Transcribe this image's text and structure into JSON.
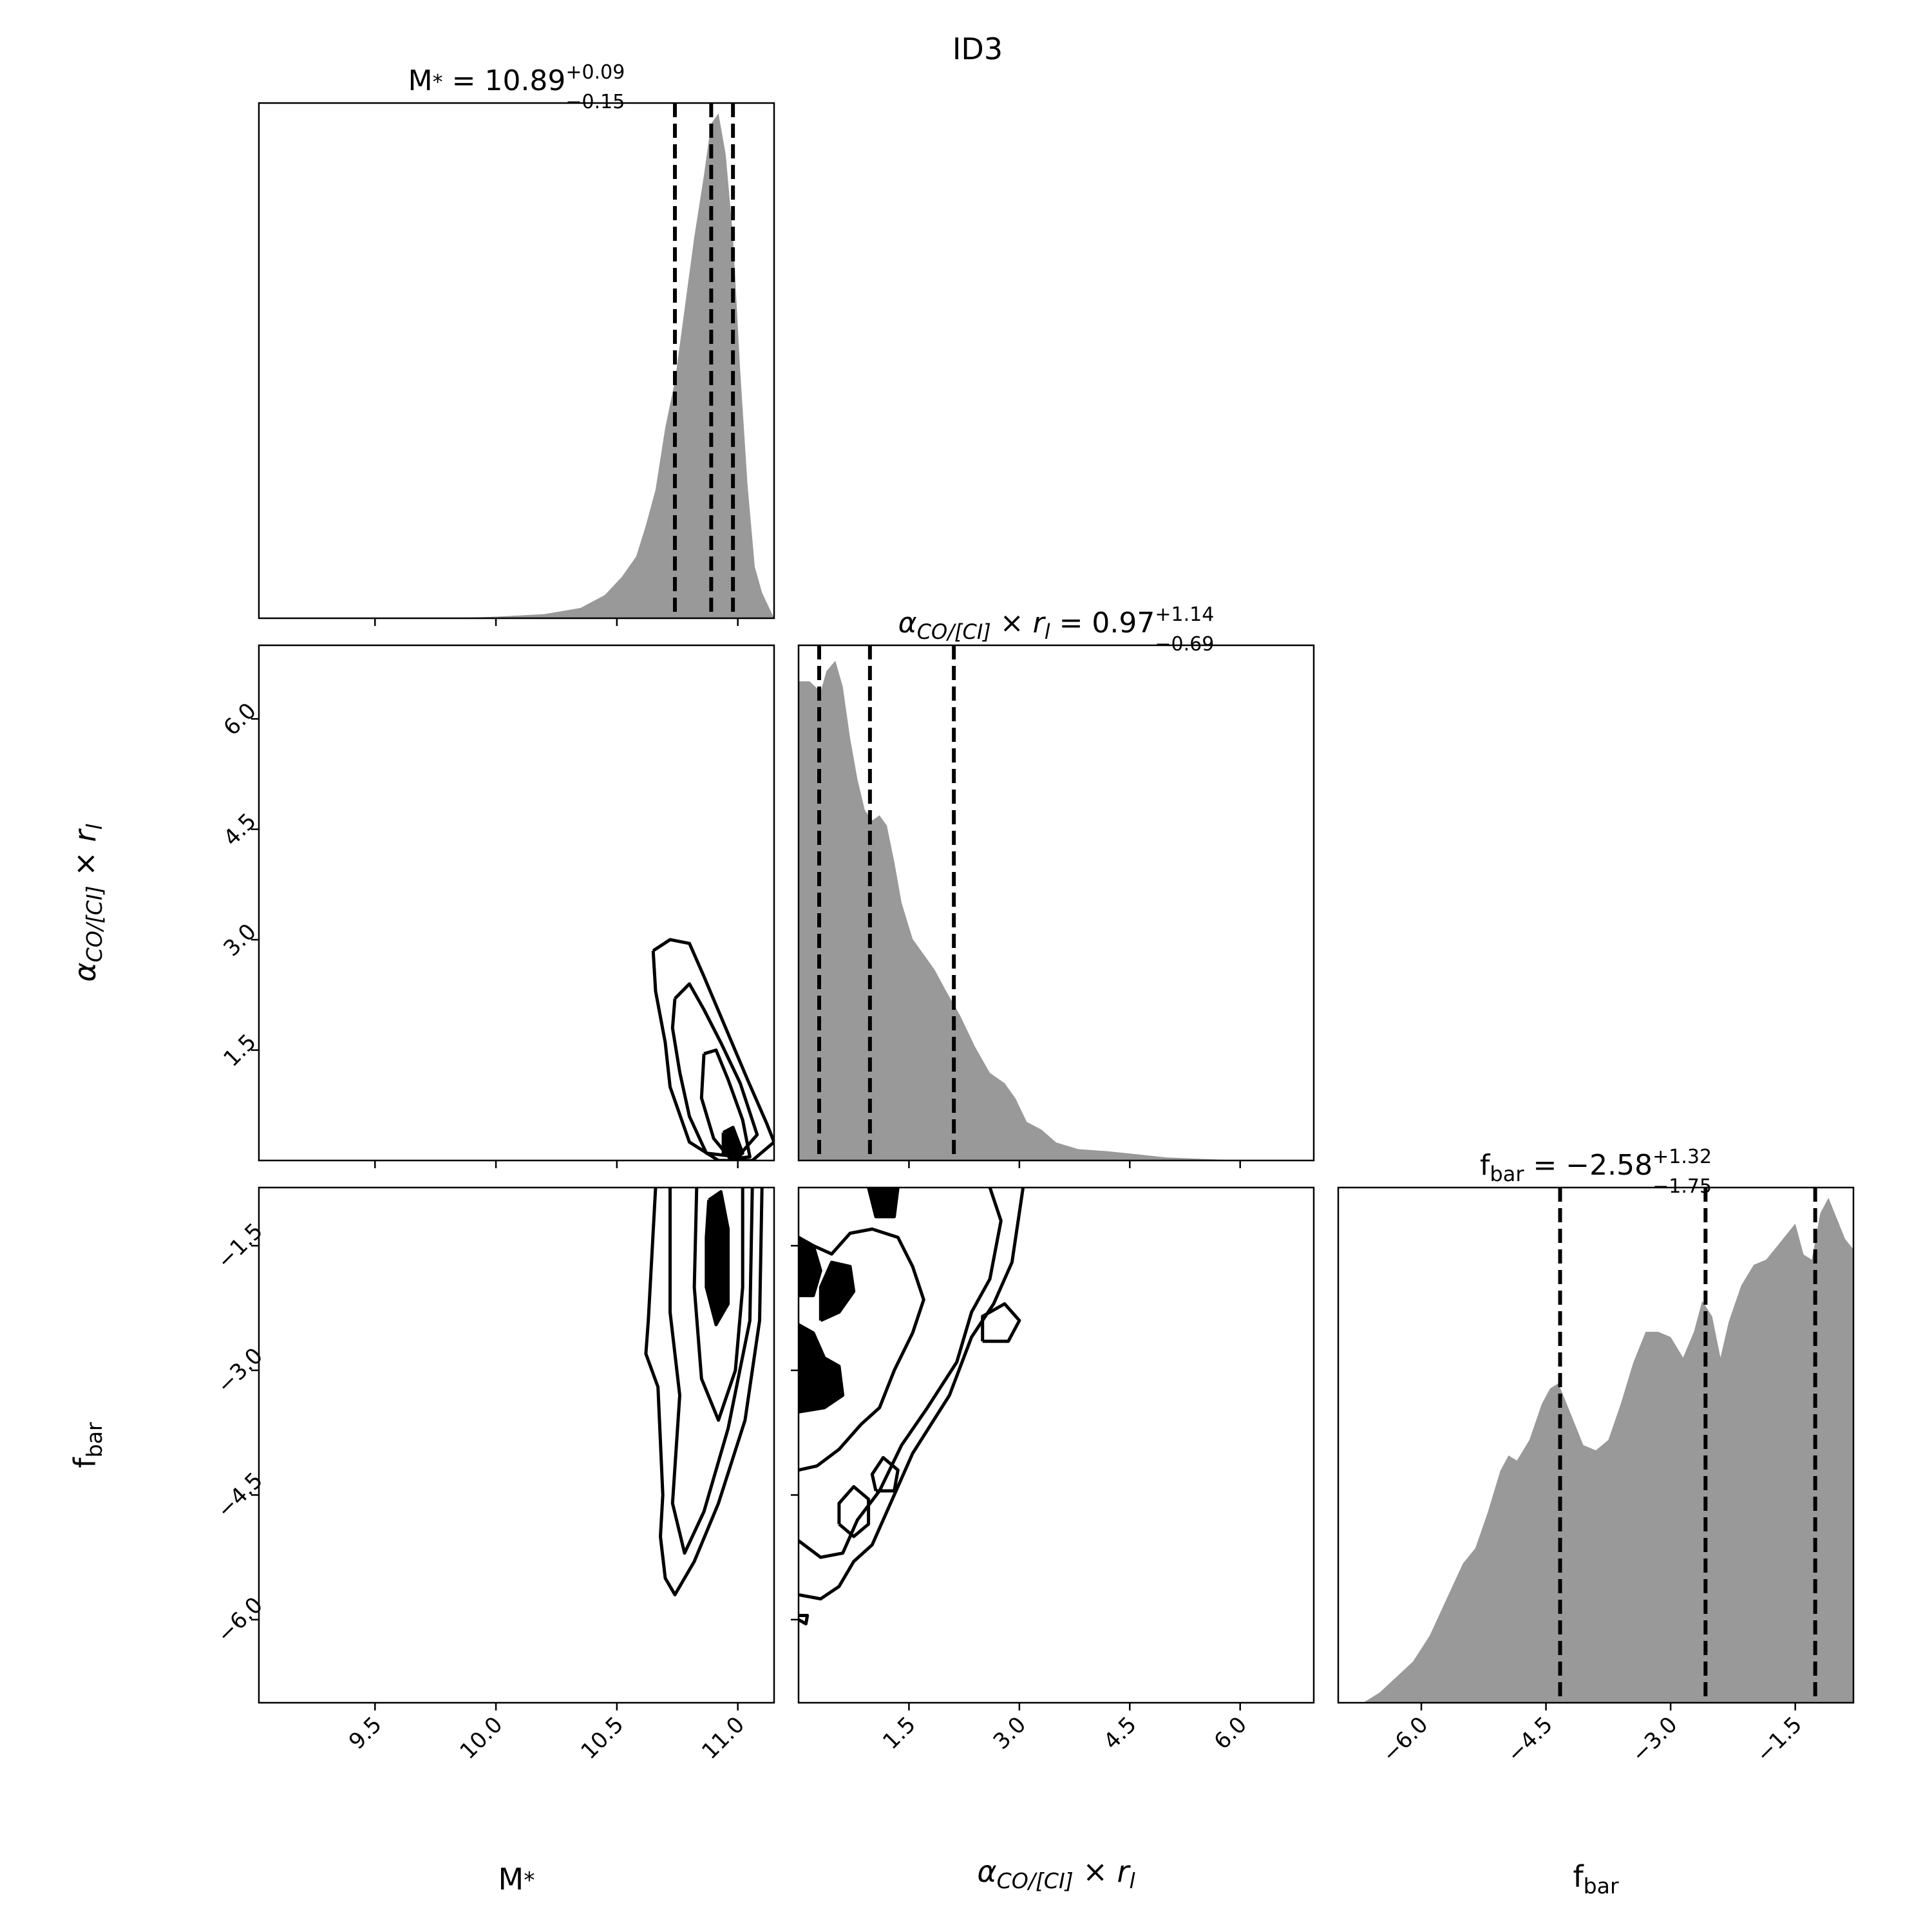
{
  "figure_title": "ID3",
  "chart_data": [
    {
      "type": "area",
      "panel": "hist-mstar",
      "x_param": "M*",
      "title": {
        "symbol": "M*",
        "median": "10.89",
        "plus": "+0.09",
        "minus": "−0.15"
      },
      "xlim": [
        9.02,
        11.15
      ],
      "quantiles": [
        10.74,
        10.89,
        10.98
      ],
      "x": [
        9.02,
        9.5,
        9.8,
        10.0,
        10.2,
        10.35,
        10.45,
        10.52,
        10.58,
        10.62,
        10.66,
        10.7,
        10.74,
        10.78,
        10.82,
        10.86,
        10.89,
        10.92,
        10.95,
        10.98,
        11.01,
        11.04,
        11.07,
        11.1,
        11.12,
        11.15
      ],
      "density": [
        0.0,
        0.0,
        0.0,
        0.003,
        0.008,
        0.02,
        0.045,
        0.08,
        0.12,
        0.18,
        0.25,
        0.37,
        0.46,
        0.6,
        0.74,
        0.86,
        0.96,
        0.98,
        0.9,
        0.74,
        0.48,
        0.26,
        0.1,
        0.05,
        0.03,
        0.0
      ]
    },
    {
      "type": "area",
      "panel": "hist-alpha",
      "x_param": "αCO/[CI] × rl",
      "title": {
        "symbol": "αCO/[CI] × rl",
        "median": "0.97",
        "plus": "+1.14",
        "minus": "−0.69"
      },
      "xlim": [
        0.0,
        7.0
      ],
      "quantiles": [
        0.28,
        0.97,
        2.11
      ],
      "x_ticks": [
        "1.5",
        "3.0",
        "4.5",
        "6.0"
      ],
      "x": [
        0.0,
        0.15,
        0.3,
        0.38,
        0.5,
        0.6,
        0.7,
        0.8,
        0.9,
        1.0,
        1.1,
        1.2,
        1.3,
        1.4,
        1.55,
        1.7,
        1.85,
        2.0,
        2.2,
        2.4,
        2.6,
        2.8,
        2.95,
        3.1,
        3.3,
        3.5,
        3.8,
        4.2,
        5.0,
        6.0,
        7.0
      ],
      "density": [
        0.93,
        0.93,
        0.91,
        0.95,
        0.97,
        0.92,
        0.82,
        0.74,
        0.68,
        0.66,
        0.67,
        0.65,
        0.58,
        0.5,
        0.43,
        0.4,
        0.37,
        0.33,
        0.28,
        0.22,
        0.17,
        0.15,
        0.12,
        0.075,
        0.06,
        0.035,
        0.022,
        0.018,
        0.006,
        0.0,
        0.0
      ]
    },
    {
      "type": "area",
      "panel": "hist-fbar",
      "x_param": "fbar",
      "title": {
        "symbol": "fbar",
        "median": "−2.58",
        "plus": "+1.32",
        "minus": "−1.75"
      },
      "xlim": [
        -7.0,
        -0.8
      ],
      "quantiles": [
        -4.33,
        -2.58,
        -1.26
      ],
      "x_ticks": [
        "−6.0",
        "−4.5",
        "−3.0",
        "−1.5"
      ],
      "x": [
        -7.0,
        -6.7,
        -6.5,
        -6.3,
        -6.1,
        -5.9,
        -5.7,
        -5.5,
        -5.35,
        -5.2,
        -5.05,
        -4.95,
        -4.85,
        -4.7,
        -4.55,
        -4.45,
        -4.35,
        -4.2,
        -4.05,
        -3.9,
        -3.75,
        -3.6,
        -3.45,
        -3.3,
        -3.15,
        -3.0,
        -2.85,
        -2.72,
        -2.62,
        -2.5,
        -2.4,
        -2.3,
        -2.15,
        -2.0,
        -1.85,
        -1.7,
        -1.6,
        -1.5,
        -1.4,
        -1.3,
        -1.2,
        -1.1,
        -1.0,
        -0.9,
        -0.8
      ],
      "density": [
        0.0,
        0.0,
        0.02,
        0.05,
        0.08,
        0.13,
        0.2,
        0.27,
        0.3,
        0.37,
        0.45,
        0.48,
        0.47,
        0.51,
        0.58,
        0.61,
        0.62,
        0.56,
        0.5,
        0.49,
        0.51,
        0.58,
        0.66,
        0.72,
        0.72,
        0.71,
        0.67,
        0.72,
        0.78,
        0.75,
        0.67,
        0.74,
        0.81,
        0.85,
        0.86,
        0.89,
        0.91,
        0.93,
        0.87,
        0.86,
        0.95,
        0.98,
        0.94,
        0.9,
        0.88
      ]
    },
    {
      "type": "contour",
      "panel": "2d-mstar-alpha",
      "x_param": "M*",
      "y_param": "αCO/[CI] × rl",
      "xlim": [
        9.02,
        11.15
      ],
      "ylim": [
        0.0,
        7.0
      ],
      "x_ticks": [
        "9.5",
        "10.0",
        "10.5",
        "11.0"
      ],
      "y_ticks": [
        "1.5",
        "3.0",
        "4.5",
        "6.0"
      ],
      "levels": [
        {
          "points": [
            [
              10.65,
              2.85
            ],
            [
              10.72,
              3.0
            ],
            [
              10.8,
              2.95
            ],
            [
              10.86,
              2.5
            ],
            [
              10.95,
              1.8
            ],
            [
              11.04,
              1.1
            ],
            [
              11.12,
              0.5
            ],
            [
              11.15,
              0.25
            ],
            [
              11.06,
              0.0
            ],
            [
              10.92,
              0.0
            ],
            [
              10.8,
              0.25
            ],
            [
              10.72,
              1.0
            ],
            [
              10.7,
              1.6
            ],
            [
              10.66,
              2.3
            ],
            [
              10.65,
              2.85
            ]
          ],
          "filled": false
        },
        {
          "points": [
            [
              10.74,
              2.2
            ],
            [
              10.8,
              2.4
            ],
            [
              10.86,
              2.05
            ],
            [
              10.93,
              1.6
            ],
            [
              11.01,
              1.05
            ],
            [
              11.08,
              0.35
            ],
            [
              11.0,
              0.05
            ],
            [
              10.87,
              0.1
            ],
            [
              10.8,
              0.6
            ],
            [
              10.76,
              1.2
            ],
            [
              10.73,
              1.8
            ],
            [
              10.74,
              2.2
            ]
          ],
          "filled": false
        },
        {
          "points": [
            [
              10.86,
              1.45
            ],
            [
              10.91,
              1.5
            ],
            [
              10.96,
              1.1
            ],
            [
              11.02,
              0.55
            ],
            [
              11.05,
              0.05
            ],
            [
              10.97,
              0.02
            ],
            [
              10.9,
              0.3
            ],
            [
              10.85,
              0.85
            ],
            [
              10.86,
              1.45
            ]
          ],
          "filled": false
        },
        {
          "points": [
            [
              10.94,
              0.38
            ],
            [
              10.98,
              0.45
            ],
            [
              11.02,
              0.1
            ],
            [
              10.99,
              0.02
            ],
            [
              10.94,
              0.1
            ],
            [
              10.94,
              0.38
            ]
          ],
          "filled": true
        }
      ]
    },
    {
      "type": "contour",
      "panel": "2d-mstar-fbar",
      "x_param": "M*",
      "y_param": "fbar",
      "xlim": [
        9.02,
        11.15
      ],
      "ylim": [
        -7.0,
        -0.8
      ],
      "x_ticks": [
        "9.5",
        "10.0",
        "10.5",
        "11.0"
      ],
      "y_ticks": [
        "−1.5",
        "−3.0",
        "−4.5",
        "−6.0"
      ],
      "levels": [
        {
          "points": [
            [
              10.66,
              -0.8
            ],
            [
              10.63,
              -2.4
            ],
            [
              10.62,
              -2.8
            ],
            [
              10.67,
              -3.2
            ],
            [
              10.69,
              -4.5
            ],
            [
              10.68,
              -5.0
            ],
            [
              10.7,
              -5.5
            ],
            [
              10.74,
              -5.7
            ],
            [
              10.82,
              -5.3
            ],
            [
              10.92,
              -4.6
            ],
            [
              11.03,
              -3.6
            ],
            [
              11.09,
              -2.4
            ],
            [
              11.1,
              -0.8
            ]
          ],
          "filled": false
        },
        {
          "points": [
            [
              10.72,
              -0.8
            ],
            [
              10.72,
              -2.3
            ],
            [
              10.76,
              -3.3
            ],
            [
              10.73,
              -4.6
            ],
            [
              10.78,
              -5.2
            ],
            [
              10.86,
              -4.7
            ],
            [
              10.96,
              -3.7
            ],
            [
              11.05,
              -2.4
            ],
            [
              11.06,
              -0.8
            ]
          ],
          "filled": false
        },
        {
          "points": [
            [
              10.83,
              -0.8
            ],
            [
              10.82,
              -2.0
            ],
            [
              10.85,
              -3.1
            ],
            [
              10.92,
              -3.6
            ],
            [
              10.99,
              -3.0
            ],
            [
              11.02,
              -2.0
            ],
            [
              11.02,
              -0.8
            ]
          ],
          "filled": false
        },
        {
          "points": [
            [
              10.88,
              -0.95
            ],
            [
              10.93,
              -0.85
            ],
            [
              10.96,
              -1.3
            ],
            [
              10.96,
              -2.2
            ],
            [
              10.91,
              -2.45
            ],
            [
              10.87,
              -2.0
            ],
            [
              10.87,
              -1.4
            ],
            [
              10.88,
              -0.95
            ]
          ],
          "filled": true
        }
      ]
    },
    {
      "type": "contour",
      "panel": "2d-alpha-fbar",
      "x_param": "αCO/[CI] × rl",
      "y_param": "fbar",
      "xlim": [
        0.0,
        7.0
      ],
      "ylim": [
        -7.0,
        -0.8
      ],
      "x_ticks": [
        "1.5",
        "3.0",
        "4.5",
        "6.0"
      ],
      "y_ticks": [
        "−1.5",
        "−3.0",
        "−4.5",
        "−6.0"
      ],
      "levels": [
        {
          "points": [
            [
              0.0,
              -5.7
            ],
            [
              0.3,
              -5.75
            ],
            [
              0.55,
              -5.6
            ],
            [
              0.75,
              -5.3
            ],
            [
              1.0,
              -5.1
            ],
            [
              1.2,
              -4.7
            ],
            [
              1.55,
              -4.0
            ],
            [
              2.05,
              -3.3
            ],
            [
              2.35,
              -2.6
            ],
            [
              2.65,
              -2.2
            ],
            [
              2.9,
              -1.7
            ],
            [
              3.0,
              -1.1
            ],
            [
              3.05,
              -0.8
            ]
          ],
          "filled": false
        },
        {
          "points": [
            [
              0.0,
              -5.05
            ],
            [
              0.3,
              -5.25
            ],
            [
              0.6,
              -5.2
            ],
            [
              0.8,
              -4.8
            ],
            [
              1.1,
              -4.45
            ],
            [
              1.4,
              -3.9
            ],
            [
              1.75,
              -3.45
            ],
            [
              2.15,
              -2.9
            ],
            [
              2.35,
              -2.3
            ],
            [
              2.6,
              -1.9
            ],
            [
              2.75,
              -1.2
            ],
            [
              2.6,
              -0.8
            ]
          ],
          "filled": false
        },
        {
          "points": [
            [
              0.0,
              -4.2
            ],
            [
              0.25,
              -4.15
            ],
            [
              0.55,
              -3.95
            ],
            [
              0.85,
              -3.65
            ],
            [
              1.1,
              -3.45
            ],
            [
              1.3,
              -3.0
            ],
            [
              1.55,
              -2.55
            ],
            [
              1.7,
              -2.15
            ],
            [
              1.55,
              -1.75
            ],
            [
              1.35,
              -1.4
            ],
            [
              1.0,
              -1.3
            ],
            [
              0.7,
              -1.35
            ],
            [
              0.45,
              -1.6
            ],
            [
              0.2,
              -1.5
            ],
            [
              0.0,
              -1.4
            ]
          ],
          "filled": false
        },
        {
          "points": [
            [
              0.0,
              -3.5
            ],
            [
              0.35,
              -3.45
            ],
            [
              0.6,
              -3.3
            ],
            [
              0.55,
              -2.95
            ],
            [
              0.35,
              -2.85
            ],
            [
              0.2,
              -2.55
            ],
            [
              0.0,
              -2.45
            ]
          ],
          "filled": true
        },
        {
          "points": [
            [
              0.0,
              -1.4
            ],
            [
              0.2,
              -1.5
            ],
            [
              0.3,
              -1.8
            ],
            [
              0.2,
              -2.1
            ],
            [
              0.0,
              -2.1
            ]
          ],
          "filled": true
        },
        {
          "points": [
            [
              0.3,
              -2.4
            ],
            [
              0.55,
              -2.3
            ],
            [
              0.75,
              -2.05
            ],
            [
              0.7,
              -1.75
            ],
            [
              0.45,
              -1.7
            ],
            [
              0.3,
              -2.0
            ],
            [
              0.3,
              -2.4
            ]
          ],
          "filled": true
        },
        {
          "points": [
            [
              0.95,
              -0.8
            ],
            [
              1.05,
              -1.15
            ],
            [
              1.3,
              -1.15
            ],
            [
              1.35,
              -0.8
            ]
          ],
          "filled": true
        },
        {
          "points": [
            [
              0.55,
              -4.85
            ],
            [
              0.75,
              -5.0
            ],
            [
              0.95,
              -4.85
            ],
            [
              0.95,
              -4.55
            ],
            [
              0.75,
              -4.4
            ],
            [
              0.55,
              -4.6
            ],
            [
              0.55,
              -4.85
            ]
          ],
          "filled": false
        },
        {
          "points": [
            [
              1.05,
              -4.45
            ],
            [
              1.3,
              -4.45
            ],
            [
              1.35,
              -4.2
            ],
            [
              1.15,
              -4.05
            ],
            [
              1.0,
              -4.25
            ],
            [
              1.05,
              -4.45
            ]
          ],
          "filled": false
        },
        {
          "points": [
            [
              2.5,
              -2.65
            ],
            [
              2.85,
              -2.65
            ],
            [
              3.0,
              -2.4
            ],
            [
              2.8,
              -2.2
            ],
            [
              2.5,
              -2.35
            ],
            [
              2.5,
              -2.65
            ]
          ],
          "filled": false
        },
        {
          "points": [
            [
              0.0,
              -6.0
            ],
            [
              0.1,
              -6.05
            ],
            [
              0.12,
              -5.95
            ],
            [
              0.0,
              -5.95
            ]
          ],
          "filled": false
        }
      ]
    }
  ],
  "axis_labels": {
    "mstar": "M*",
    "alpha": "αCO/[CI] × rl",
    "fbar": "fbar"
  }
}
